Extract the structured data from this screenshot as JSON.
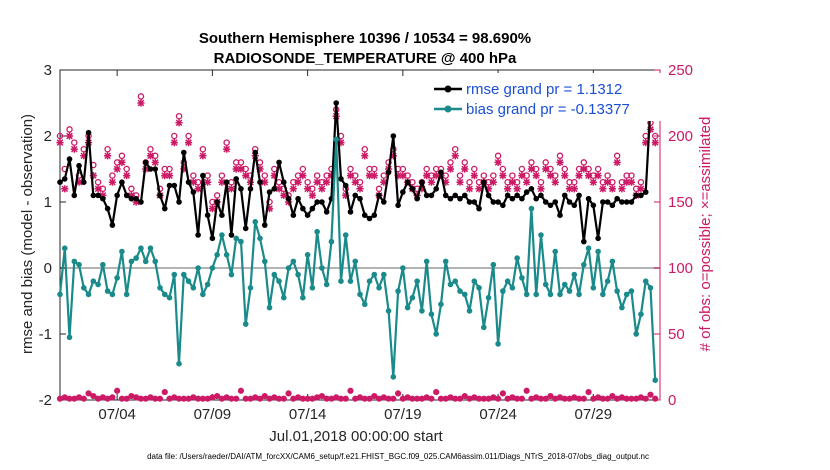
{
  "chart_data": {
    "type": "line",
    "title_line1": "Southern Hemisphere 10396 / 10534 = 98.690%",
    "title_line2": "RADIOSONDE_TEMPERATURE @ 400 hPa",
    "xlabel": "Jul.01,2018 00:00:00 start",
    "ylabel_left": "rmse and bias (model - observation)",
    "ylabel_right": "# of obs: o=possible; ×=assimilated",
    "footer": "data file: /Users/raeder/DAI/ATM_forcXX/CAM6_setup/f.e21.FHIST_BGC.f09_025.CAM6assim.011/Diags_NTrS_2018-07/obs_diag_output.nc",
    "xlim": [
      1.0,
      32.5
    ],
    "ylim_left": [
      -2,
      3
    ],
    "ylim_right": [
      0,
      250
    ],
    "xticks": [
      4,
      9,
      14,
      19,
      24,
      29
    ],
    "xtick_labels": [
      "07/04",
      "07/09",
      "07/14",
      "07/19",
      "07/24",
      "07/29"
    ],
    "yticks_left": [
      -2,
      -1,
      0,
      1,
      2,
      3
    ],
    "yticks_left_labels": [
      "-2",
      "-1",
      "0",
      "1",
      "2",
      "3"
    ],
    "yticks_right": [
      0,
      50,
      100,
      150,
      200,
      250
    ],
    "yticks_right_labels": [
      "0",
      "50",
      "100",
      "150",
      "200",
      "250"
    ],
    "x_start": 1.0,
    "x_step": 0.25,
    "series": [
      {
        "name": "rmse grand pr = 1.1312",
        "axis": "left",
        "color": "#000000",
        "values": [
          1.3,
          1.35,
          1.65,
          1.1,
          1.55,
          1.3,
          2.05,
          1.1,
          1.1,
          1.05,
          0.9,
          0.65,
          1.1,
          1.3,
          1.1,
          1.05,
          1.05,
          1.0,
          1.6,
          1.5,
          1.5,
          1.1,
          0.9,
          1.25,
          1.25,
          1.0,
          1.75,
          1.3,
          1.15,
          0.5,
          1.4,
          0.8,
          0.45,
          1.0,
          0.8,
          1.3,
          0.5,
          1.35,
          1.2,
          0.6,
          1.2,
          1.75,
          1.3,
          0.65,
          1.15,
          1.2,
          1.6,
          1.3,
          1.05,
          0.8,
          1.05,
          0.9,
          0.8,
          0.9,
          1.0,
          1.0,
          0.85,
          1.05,
          2.5,
          1.35,
          1.25,
          0.85,
          1.1,
          1.05,
          0.8,
          0.75,
          0.8,
          1.1,
          1.0,
          1.45,
          2.0,
          0.95,
          1.15,
          1.3,
          1.2,
          1.05,
          1.3,
          1.1,
          1.1,
          1.2,
          1.45,
          1.1,
          1.05,
          1.1,
          1.05,
          1.1,
          1.0,
          1.0,
          0.9,
          1.3,
          1.1,
          1.0,
          1.0,
          0.95,
          1.1,
          1.05,
          1.1,
          1.05,
          1.15,
          1.2,
          1.05,
          1.1,
          1.0,
          0.95,
          1.0,
          0.8,
          1.1,
          1.0,
          0.95,
          1.1,
          0.4,
          1.05,
          0.95,
          0.45,
          1.0,
          1.0,
          0.95,
          1.05,
          1.0,
          1.0,
          1.0,
          1.1,
          1.1,
          1.15,
          2.45
        ]
      },
      {
        "name": "bias grand pr = -0.13377",
        "axis": "left",
        "color": "#1a8a8a",
        "values": [
          -0.4,
          0.3,
          -1.05,
          0.1,
          0.05,
          -0.3,
          -0.4,
          -0.2,
          -0.25,
          0.05,
          -0.35,
          -0.4,
          -0.15,
          0.25,
          -0.4,
          0.1,
          0.15,
          0.3,
          0.1,
          0.3,
          0.1,
          -0.3,
          -0.4,
          -0.45,
          -0.1,
          -1.45,
          -0.1,
          -0.2,
          -0.3,
          0.0,
          -0.4,
          -0.25,
          0.0,
          0.2,
          0.5,
          0.2,
          -0.1,
          0.45,
          0.4,
          -0.85,
          -0.3,
          0.7,
          0.45,
          0.1,
          -0.6,
          -0.1,
          -0.2,
          -0.45,
          0.0,
          0.1,
          -0.1,
          -0.45,
          0.2,
          -0.3,
          0.55,
          0.0,
          -0.25,
          0.4,
          1.95,
          -0.2,
          0.5,
          -0.2,
          0.1,
          -0.4,
          -0.55,
          -0.2,
          -0.1,
          -0.3,
          -0.1,
          -0.65,
          -1.65,
          -0.35,
          0.0,
          -0.6,
          -0.45,
          -0.2,
          -0.65,
          0.1,
          -0.7,
          -1.0,
          -0.55,
          0.1,
          -0.25,
          -0.2,
          -0.35,
          -0.4,
          -0.65,
          -0.2,
          -0.3,
          -0.9,
          -0.45,
          0.05,
          -1.15,
          -0.35,
          -0.2,
          -0.3,
          0.15,
          -0.15,
          -0.4,
          0.9,
          -0.4,
          0.5,
          -0.25,
          -0.4,
          0.25,
          -0.4,
          -0.25,
          -0.35,
          -0.1,
          -0.4,
          0.05,
          0.3,
          -0.3,
          0.25,
          -0.4,
          -0.2,
          0.1,
          -0.35,
          -0.6,
          -0.4,
          -0.35,
          -1.0,
          -0.7,
          -0.2,
          -0.3,
          -1.7
        ]
      }
    ],
    "obs_possible_right": [
      200,
      175,
      205,
      195,
      170,
      190,
      200,
      178,
      165,
      160,
      190,
      170,
      180,
      185,
      175,
      160,
      155,
      230,
      180,
      190,
      185,
      160,
      175,
      175,
      200,
      215,
      180,
      200,
      170,
      165,
      190,
      170,
      150,
      155,
      170,
      195,
      165,
      180,
      180,
      175,
      170,
      190,
      180,
      170,
      150,
      175,
      165,
      160,
      155,
      165,
      170,
      175,
      165,
      160,
      170,
      165,
      170,
      175,
      220,
      200,
      160,
      175,
      170,
      165,
      190,
      175,
      175,
      160,
      170,
      180,
      190,
      175,
      175,
      170,
      165,
      160,
      165,
      175,
      170,
      175,
      175,
      170,
      180,
      190,
      170,
      180,
      165,
      175,
      165,
      170,
      165,
      170,
      185,
      175,
      165,
      170,
      165,
      175,
      170,
      180,
      175,
      165,
      180,
      175,
      170,
      185,
      175,
      165,
      165,
      175,
      180,
      175,
      170,
      175,
      165,
      170,
      165,
      185,
      165,
      170,
      170,
      160,
      165,
      200,
      210,
      200
    ],
    "obs_assimilated_right": [
      195,
      160,
      200,
      190,
      165,
      185,
      195,
      170,
      160,
      155,
      185,
      165,
      175,
      180,
      170,
      155,
      150,
      225,
      175,
      185,
      180,
      155,
      170,
      170,
      195,
      210,
      175,
      195,
      165,
      160,
      185,
      165,
      145,
      150,
      165,
      190,
      160,
      175,
      175,
      170,
      165,
      185,
      175,
      165,
      145,
      170,
      160,
      155,
      150,
      160,
      165,
      170,
      160,
      155,
      165,
      160,
      165,
      170,
      215,
      195,
      155,
      170,
      165,
      160,
      185,
      170,
      170,
      155,
      165,
      175,
      185,
      170,
      170,
      165,
      160,
      155,
      160,
      170,
      165,
      170,
      170,
      165,
      175,
      185,
      165,
      175,
      160,
      170,
      160,
      165,
      160,
      165,
      180,
      170,
      160,
      165,
      160,
      170,
      165,
      175,
      170,
      160,
      175,
      170,
      165,
      180,
      170,
      160,
      160,
      170,
      175,
      170,
      165,
      170,
      160,
      165,
      160,
      180,
      160,
      165,
      165,
      155,
      160,
      195,
      205,
      195
    ],
    "obs_bottom_possible_right": [
      1,
      2,
      1,
      1,
      2,
      1,
      5,
      3,
      1,
      2,
      1,
      2,
      7,
      1,
      1,
      3,
      2,
      1,
      1,
      2,
      1,
      1,
      6,
      1,
      2,
      1,
      1,
      1,
      2,
      1,
      1,
      1,
      2,
      3,
      1,
      2,
      1,
      1,
      7,
      1,
      1,
      2,
      1,
      3,
      1,
      2,
      1,
      1,
      5,
      1,
      2,
      1,
      1,
      1,
      2,
      3,
      1,
      1,
      2,
      1,
      1,
      7,
      1,
      2,
      1,
      1,
      3,
      1,
      2,
      1,
      1,
      5,
      1,
      2,
      1,
      1,
      1,
      2,
      1,
      6,
      1,
      1,
      2,
      1,
      1,
      3,
      1,
      2,
      1,
      1,
      1,
      2,
      1,
      5,
      1,
      2,
      1,
      1,
      7,
      1,
      2,
      1,
      1,
      3,
      1,
      2,
      1,
      1,
      2,
      1,
      1,
      6,
      1,
      2,
      1,
      1,
      3,
      1,
      2,
      1,
      1,
      1,
      2,
      1,
      4,
      1
    ],
    "colors": {
      "rmse": "#000000",
      "bias": "#1a8a8a",
      "obs": "#cc1a66",
      "zero_line": "#b3b3b3",
      "legend_text": "#1a4fd6"
    }
  }
}
